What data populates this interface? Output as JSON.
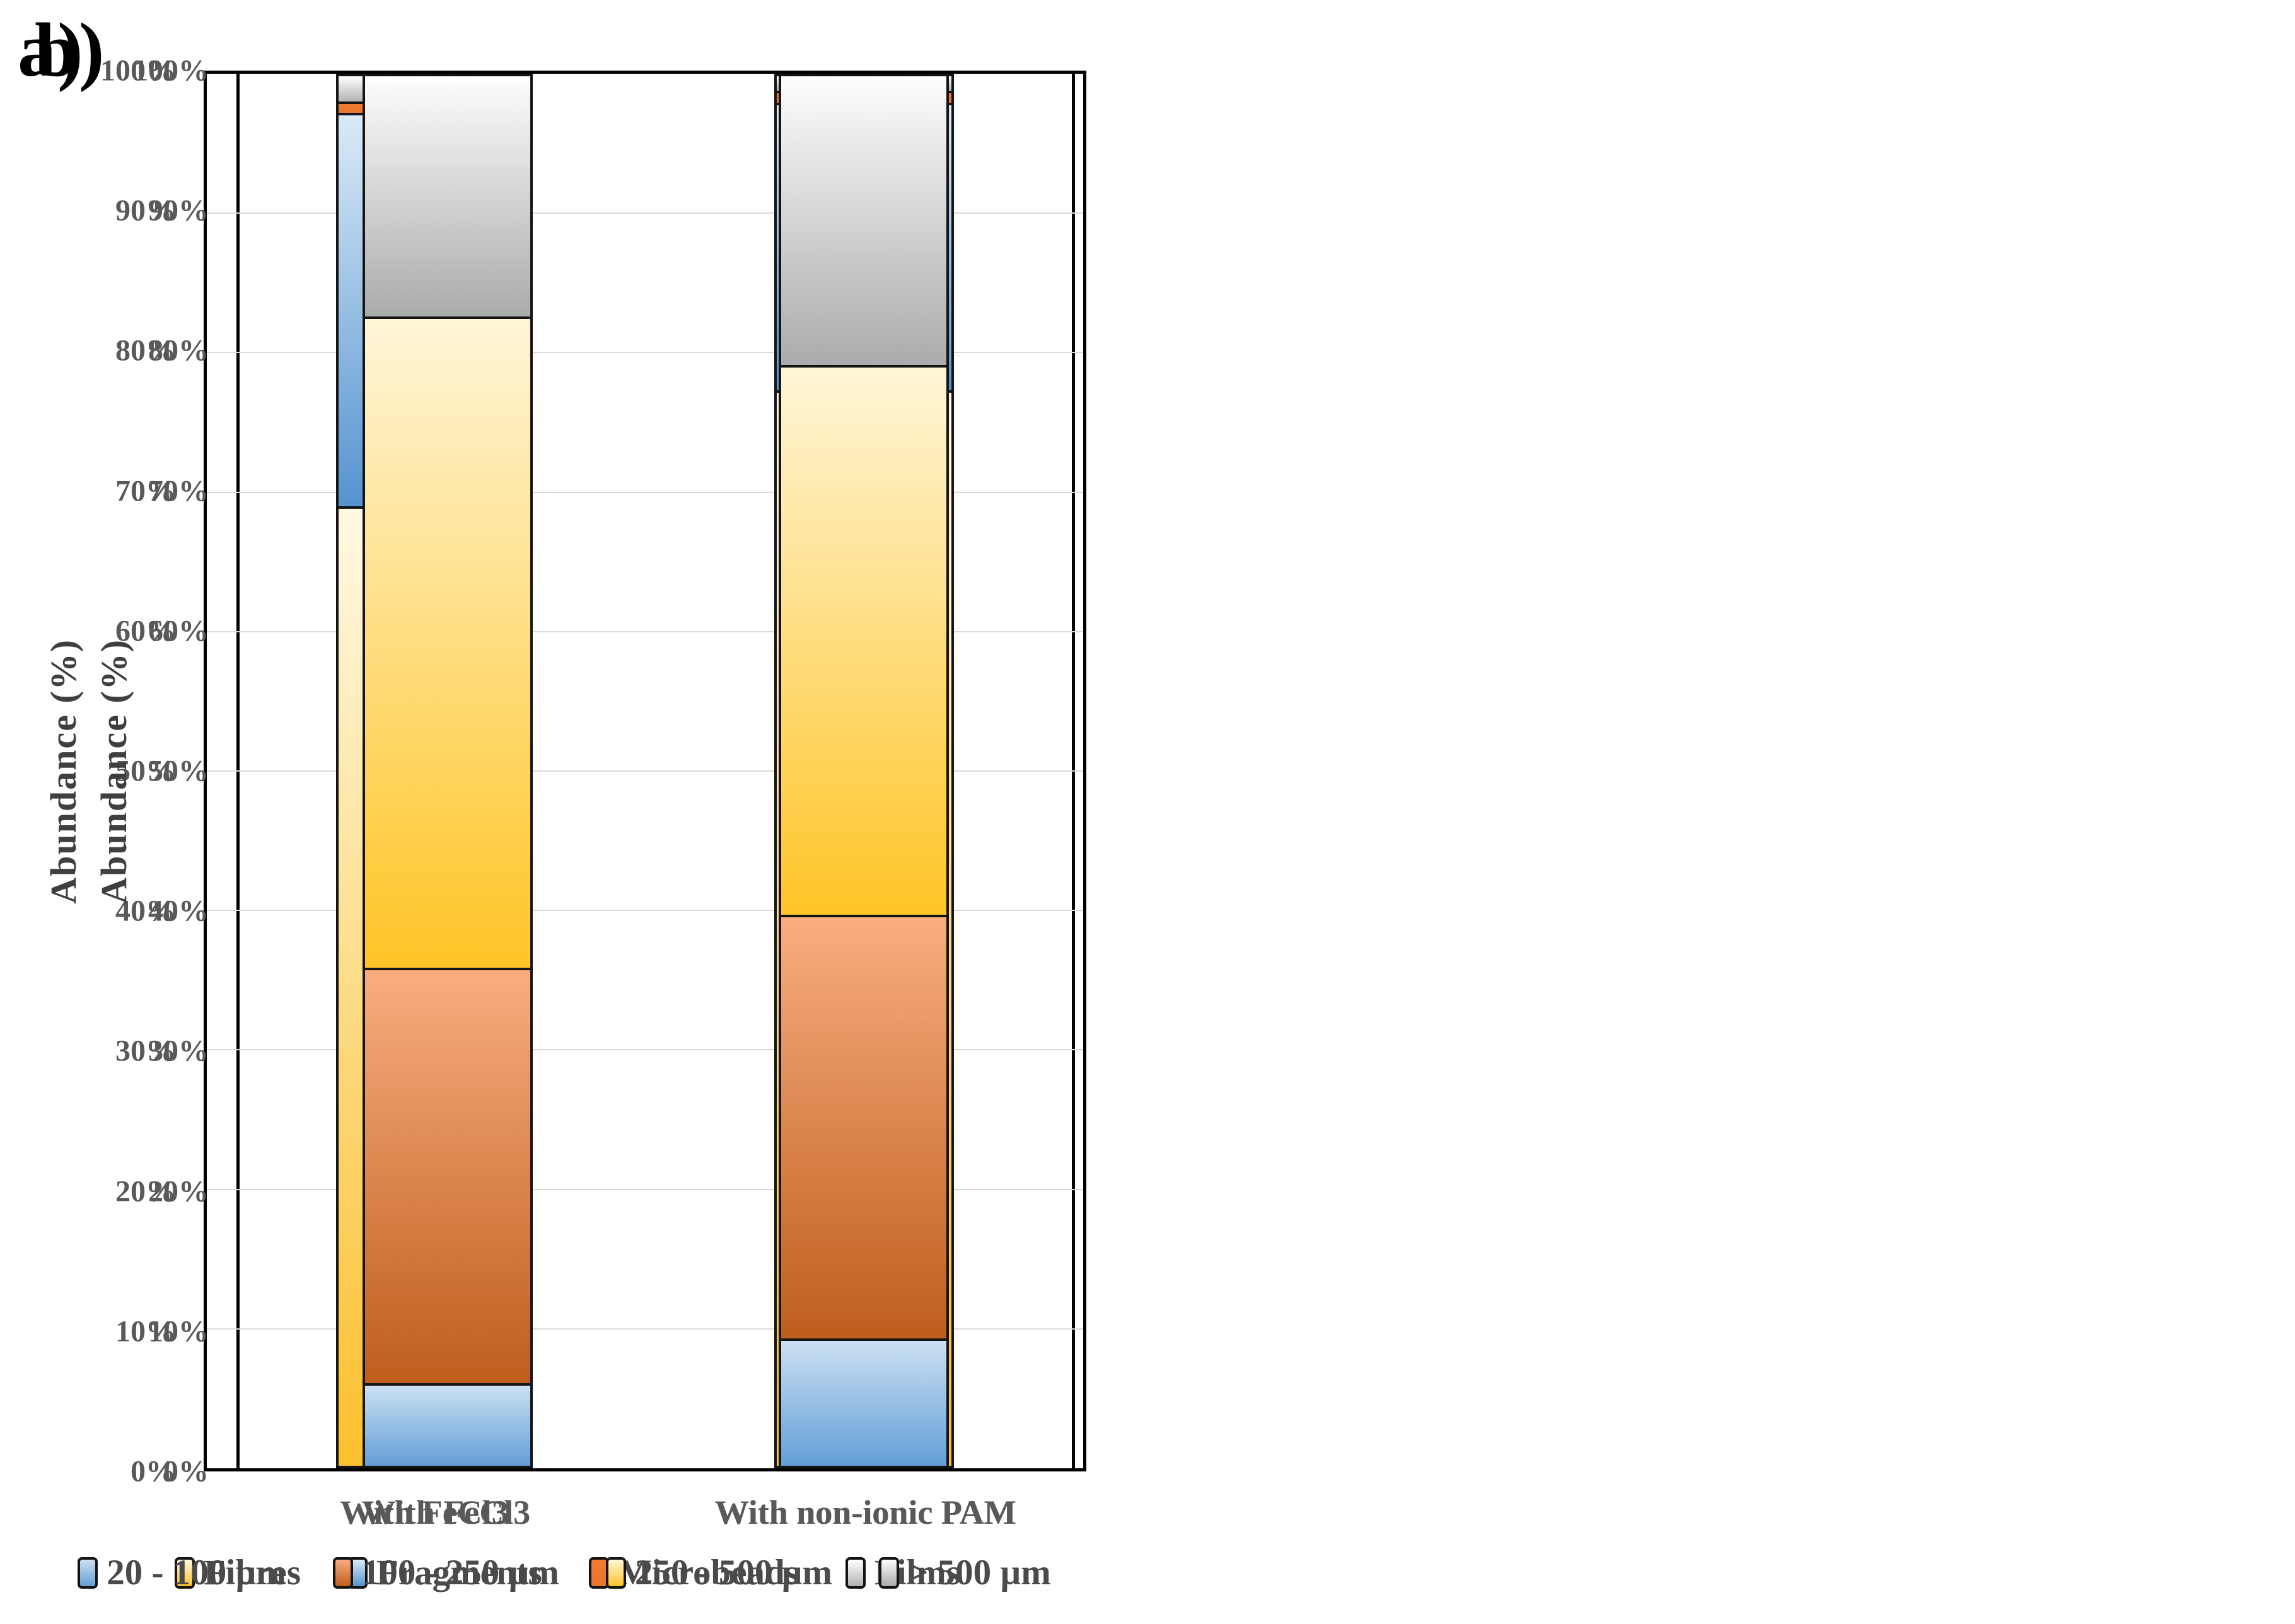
{
  "accent_colors": {
    "grid": "#d9d9d9",
    "frame": "#000000",
    "segment_outline": "#141414",
    "tick_text": "#595959",
    "axis_title_text": "#3f3f3f",
    "category_text": "#595959",
    "legend_text": "#4a4a4a",
    "panel_letter_text": "#000000"
  },
  "chart_data": [
    {
      "type": "bar",
      "stacked": true,
      "panel_label": "a)",
      "title": "",
      "xlabel": "",
      "ylabel": "Abundance (%)",
      "ylim": [
        0,
        100
      ],
      "grid": "horizontal 10% steps",
      "legend_position": "bottom",
      "yticks": [
        "0%",
        "10%",
        "20%",
        "30%",
        "40%",
        "50%",
        "60%",
        "70%",
        "80%",
        "90%",
        "100%"
      ],
      "categories": [
        "With FeCl3",
        "With non-ionic PAM"
      ],
      "series": [
        {
          "name": "Fibres",
          "values": [
            69.0,
            77.3
          ],
          "color_top": "#FFF9E3",
          "color_bottom": "#FBC02D"
        },
        {
          "name": "Fragments",
          "values": [
            28.2,
            20.6
          ],
          "color_top": "#DAEAF7",
          "color_bottom": "#5593D0"
        },
        {
          "name": "Microbeads",
          "values": [
            0.8,
            0.9
          ],
          "color_top": "#EE7D31",
          "color_bottom": "#E8762C"
        },
        {
          "name": "Films",
          "values": [
            2.0,
            1.2
          ],
          "color_top": "#FFFFFF",
          "color_bottom": "#B3B3B3"
        }
      ]
    },
    {
      "type": "bar",
      "stacked": true,
      "panel_label": "b)",
      "title": "",
      "xlabel": "",
      "ylabel": "Abundance (%)",
      "ylim": [
        0,
        100
      ],
      "grid": "horizontal 10% steps",
      "legend_position": "bottom",
      "yticks": [
        "0%",
        "10%",
        "20%",
        "30%",
        "40%",
        "50%",
        "60%",
        "70%",
        "80%",
        "90%",
        "100%"
      ],
      "categories": [
        "With FeCl3",
        "With non-ionic PAM"
      ],
      "series": [
        {
          "name": "20 - 100 µm",
          "values": [
            6.1,
            9.3
          ],
          "color_top": "#CBE0F3",
          "color_bottom": "#639ED6"
        },
        {
          "name": "100 - 250 µm",
          "values": [
            29.8,
            30.4
          ],
          "color_top": "#F9AD7F",
          "color_bottom": "#BE5E1D"
        },
        {
          "name": "250 - 500 µm",
          "values": [
            46.7,
            39.4
          ],
          "color_top": "#FFF6D8",
          "color_bottom": "#FFC427"
        },
        {
          "name": "> 500 µm",
          "values": [
            17.4,
            20.9
          ],
          "color_top": "#FDFDFD",
          "color_bottom": "#ABABAB"
        }
      ]
    }
  ]
}
